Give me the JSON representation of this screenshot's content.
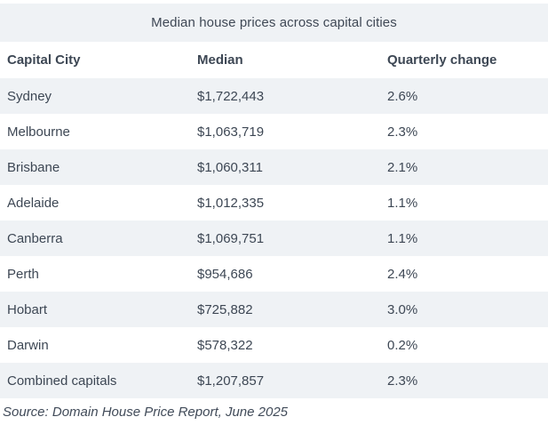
{
  "title": "Median house prices across capital cities",
  "source": "Source: Domain House Price Report, June 2025",
  "colors": {
    "stripe": "#eff2f5",
    "text": "#3d4754",
    "background": "#ffffff"
  },
  "table": {
    "headers": [
      "Capital City",
      "Median",
      "Quarterly change"
    ],
    "rows": [
      {
        "city": "Sydney",
        "median": "$1,722,443",
        "change": "2.6%"
      },
      {
        "city": "Melbourne",
        "median": "$1,063,719",
        "change": "2.3%"
      },
      {
        "city": "Brisbane",
        "median": "$1,060,311",
        "change": "2.1%"
      },
      {
        "city": "Adelaide",
        "median": "$1,012,335",
        "change": "1.1%"
      },
      {
        "city": "Canberra",
        "median": "$1,069,751",
        "change": "1.1%"
      },
      {
        "city": "Perth",
        "median": "$954,686",
        "change": "2.4%"
      },
      {
        "city": "Hobart",
        "median": "$725,882",
        "change": "3.0%"
      },
      {
        "city": "Darwin",
        "median": "$578,322",
        "change": "0.2%"
      },
      {
        "city": "Combined capitals",
        "median": "$1,207,857",
        "change": "2.3%"
      }
    ]
  },
  "chart_data": {
    "type": "table",
    "title": "Median house prices across capital cities",
    "columns": [
      "Capital City",
      "Median",
      "Quarterly change"
    ],
    "rows": [
      [
        "Sydney",
        "$1,722,443",
        "2.6%"
      ],
      [
        "Melbourne",
        "$1,063,719",
        "2.3%"
      ],
      [
        "Brisbane",
        "$1,060,311",
        "2.1%"
      ],
      [
        "Adelaide",
        "$1,012,335",
        "1.1%"
      ],
      [
        "Canberra",
        "$1,069,751",
        "1.1%"
      ],
      [
        "Perth",
        "$954,686",
        "2.4%"
      ],
      [
        "Hobart",
        "$725,882",
        "3.0%"
      ],
      [
        "Darwin",
        "$578,322",
        "0.2%"
      ],
      [
        "Combined capitals",
        "$1,207,857",
        "2.3%"
      ]
    ],
    "median_values_aud": [
      1722443,
      1063719,
      1060311,
      1012335,
      1069751,
      954686,
      725882,
      578322,
      1207857
    ],
    "quarterly_change_pct": [
      2.6,
      2.3,
      2.1,
      1.1,
      1.1,
      2.4,
      3.0,
      0.2,
      2.3
    ],
    "source": "Source: Domain House Price Report, June 2025",
    "layout": {
      "striped_rows": "odd rows light #eff2f5",
      "grid": "off",
      "legend": "none"
    }
  }
}
